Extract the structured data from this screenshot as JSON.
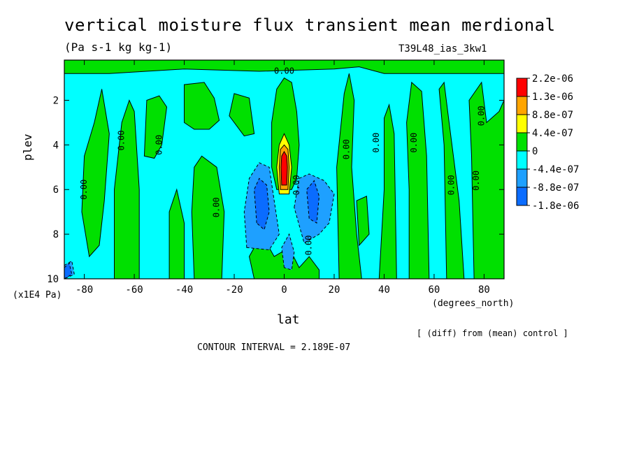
{
  "chart_data": {
    "type": "heatmap",
    "title": "vertical moisture flux transient mean merdional",
    "units": "(Pa s-1 kg kg-1)",
    "run_label": "T39L48_ias_3kw1",
    "xlabel": "lat",
    "x_unit": "(degrees_north)",
    "ylabel": "plev",
    "y_unit": "(x1E4 Pa)",
    "xlim": [
      -88,
      88
    ],
    "ylim": [
      10,
      0.2
    ],
    "x_ticks": [
      -80,
      -60,
      -40,
      -20,
      0,
      20,
      40,
      60,
      80
    ],
    "x_tick_labels": [
      "-80",
      "-60",
      "-40",
      "-20",
      "0",
      "20",
      "40",
      "60",
      "80"
    ],
    "y_ticks": [
      2,
      4,
      6,
      8,
      10
    ],
    "y_tick_labels": [
      "2",
      "4",
      "6",
      "8",
      "10"
    ],
    "legend": {
      "placement": "right",
      "levels": [
        "2.2e-06",
        "1.3e-06",
        "8.8e-07",
        "4.4e-07",
        "0",
        "-4.4e-07",
        "-8.8e-07",
        "-1.8e-06"
      ],
      "colors": [
        "#ff0000",
        "#ffa500",
        "#ffff00",
        "#00e000",
        "#00ffff",
        "#1ea0ff",
        "#0a6cff"
      ]
    },
    "contour_label": "0.00",
    "contour_label_positions": [
      [
        0,
        0.7
      ],
      [
        -80,
        6.0
      ],
      [
        -65,
        3.8
      ],
      [
        -50,
        4.0
      ],
      [
        -27,
        6.8
      ],
      [
        5,
        5.8
      ],
      [
        10,
        8.5
      ],
      [
        25,
        4.2
      ],
      [
        37,
        3.9
      ],
      [
        52,
        3.9
      ],
      [
        67,
        5.8
      ],
      [
        77,
        5.6
      ],
      [
        79,
        2.7
      ]
    ],
    "contour_interval_text": "CONTOUR INTERVAL = 2.189E-07",
    "footnote": "[ (diff) from (mean) control ]",
    "regions": [
      {
        "level": "green",
        "points": [
          [
            -88,
            0.2
          ],
          [
            88,
            0.2
          ],
          [
            88,
            0.8
          ],
          [
            40,
            0.8
          ],
          [
            30,
            0.5
          ],
          [
            20,
            0.6
          ],
          [
            -10,
            0.7
          ],
          [
            -40,
            0.6
          ],
          [
            -70,
            0.8
          ],
          [
            -88,
            0.8
          ]
        ]
      },
      {
        "level": "green",
        "points": [
          [
            -80,
            4.5
          ],
          [
            -76,
            3.0
          ],
          [
            -73,
            1.5
          ],
          [
            -70,
            3.5
          ],
          [
            -72,
            6.5
          ],
          [
            -74,
            8.5
          ],
          [
            -78,
            9.0
          ],
          [
            -81,
            7.0
          ]
        ]
      },
      {
        "level": "green",
        "points": [
          [
            -68,
            10
          ],
          [
            -68,
            6.0
          ],
          [
            -65,
            3.0
          ],
          [
            -62,
            2.0
          ],
          [
            -60,
            2.5
          ],
          [
            -58,
            6.0
          ],
          [
            -58,
            10
          ]
        ]
      },
      {
        "level": "green",
        "points": [
          [
            -56,
            4.5
          ],
          [
            -55,
            2.0
          ],
          [
            -50,
            1.8
          ],
          [
            -47,
            2.3
          ],
          [
            -49,
            4.0
          ],
          [
            -52,
            4.6
          ]
        ]
      },
      {
        "level": "green",
        "points": [
          [
            -46,
            10
          ],
          [
            -46,
            7.0
          ],
          [
            -43,
            6.0
          ],
          [
            -40,
            7.5
          ],
          [
            -40,
            10
          ]
        ]
      },
      {
        "level": "green",
        "points": [
          [
            -36,
            10
          ],
          [
            -37,
            7.0
          ],
          [
            -36,
            5.0
          ],
          [
            -33,
            4.5
          ],
          [
            -27,
            5.0
          ],
          [
            -24,
            7.0
          ],
          [
            -25,
            10
          ]
        ]
      },
      {
        "level": "green",
        "points": [
          [
            -40,
            3.0
          ],
          [
            -40,
            1.3
          ],
          [
            -32,
            1.2
          ],
          [
            -28,
            1.9
          ],
          [
            -26,
            2.9
          ],
          [
            -30,
            3.3
          ],
          [
            -36,
            3.3
          ]
        ]
      },
      {
        "level": "green",
        "points": [
          [
            -22,
            2.7
          ],
          [
            -20,
            1.7
          ],
          [
            -14,
            1.9
          ],
          [
            -12,
            3.5
          ],
          [
            -16,
            3.6
          ]
        ]
      },
      {
        "level": "green",
        "points": [
          [
            -12,
            10
          ],
          [
            -14,
            9.0
          ],
          [
            -9,
            8.0
          ],
          [
            -4,
            9.0
          ],
          [
            2,
            8.6
          ],
          [
            6,
            9.5
          ],
          [
            10,
            9.0
          ],
          [
            14,
            9.6
          ],
          [
            14,
            10
          ]
        ]
      },
      {
        "level": "green",
        "points": [
          [
            -3,
            1.5
          ],
          [
            0,
            1.0
          ],
          [
            3,
            1.2
          ],
          [
            5,
            2.5
          ],
          [
            6,
            4.0
          ],
          [
            5,
            5.5
          ],
          [
            3,
            6.0
          ],
          [
            -3,
            6.0
          ],
          [
            -5,
            5.0
          ],
          [
            -5,
            3.0
          ]
        ]
      },
      {
        "level": "green",
        "points": [
          [
            22,
            10
          ],
          [
            21,
            5.0
          ],
          [
            24,
            1.7
          ],
          [
            26,
            0.8
          ],
          [
            28,
            2.0
          ],
          [
            27,
            5.0
          ],
          [
            29,
            8.0
          ],
          [
            31,
            10
          ]
        ]
      },
      {
        "level": "green",
        "points": [
          [
            30,
            8.5
          ],
          [
            29,
            6.5
          ],
          [
            33,
            6.3
          ],
          [
            34,
            8.0
          ]
        ]
      },
      {
        "level": "green",
        "points": [
          [
            38,
            10
          ],
          [
            40,
            6.0
          ],
          [
            40,
            2.8
          ],
          [
            42,
            2.2
          ],
          [
            44,
            3.5
          ],
          [
            45,
            10
          ]
        ]
      },
      {
        "level": "green",
        "points": [
          [
            50,
            10
          ],
          [
            50,
            6.0
          ],
          [
            49,
            3.0
          ],
          [
            51,
            1.2
          ],
          [
            55,
            1.6
          ],
          [
            57,
            4.5
          ],
          [
            58,
            10
          ]
        ]
      },
      {
        "level": "green",
        "points": [
          [
            65,
            10
          ],
          [
            64,
            4.0
          ],
          [
            62,
            1.5
          ],
          [
            64,
            1.2
          ],
          [
            66,
            3.0
          ],
          [
            70,
            6.5
          ],
          [
            72,
            10
          ]
        ]
      },
      {
        "level": "green",
        "points": [
          [
            76,
            10
          ],
          [
            75,
            4.5
          ],
          [
            74,
            2.0
          ],
          [
            79,
            1.2
          ],
          [
            81,
            3.0
          ],
          [
            86,
            2.5
          ],
          [
            88,
            2.0
          ],
          [
            88,
            10
          ]
        ]
      },
      {
        "level": "lightblue",
        "points": [
          [
            -15,
            8.6
          ],
          [
            -16,
            7.0
          ],
          [
            -14,
            5.5
          ],
          [
            -10,
            4.8
          ],
          [
            -6,
            5.0
          ],
          [
            -4,
            6.5
          ],
          [
            -2,
            8.0
          ],
          [
            -6,
            8.7
          ]
        ]
      },
      {
        "level": "lightblue",
        "points": [
          [
            4,
            6.8
          ],
          [
            6,
            5.5
          ],
          [
            10,
            5.3
          ],
          [
            16,
            5.6
          ],
          [
            20,
            6.2
          ],
          [
            18,
            7.5
          ],
          [
            14,
            8.0
          ],
          [
            8,
            8.4
          ]
        ]
      },
      {
        "level": "lightblue",
        "points": [
          [
            -88,
            9.4
          ],
          [
            -85,
            9.2
          ],
          [
            -84,
            9.8
          ],
          [
            -88,
            10
          ]
        ]
      },
      {
        "level": "lightblue",
        "points": [
          [
            0,
            9.5
          ],
          [
            -1,
            8.6
          ],
          [
            2,
            8.0
          ],
          [
            4,
            8.8
          ],
          [
            3,
            9.6
          ]
        ]
      },
      {
        "level": "darkblue",
        "points": [
          [
            -11,
            7.5
          ],
          [
            -12,
            6.0
          ],
          [
            -10,
            5.5
          ],
          [
            -7,
            5.8
          ],
          [
            -6,
            7.0
          ],
          [
            -8,
            7.8
          ]
        ]
      },
      {
        "level": "darkblue",
        "points": [
          [
            10,
            7.3
          ],
          [
            9,
            6.0
          ],
          [
            12,
            5.6
          ],
          [
            14,
            6.3
          ],
          [
            13,
            7.5
          ]
        ]
      },
      {
        "level": "darkblue",
        "points": [
          [
            -88,
            9.5
          ],
          [
            -86,
            9.3
          ],
          [
            -85,
            9.8
          ],
          [
            -88,
            10
          ]
        ]
      },
      {
        "level": "yellow",
        "points": [
          [
            -2,
            6.2
          ],
          [
            -3,
            5.0
          ],
          [
            -2,
            4.0
          ],
          [
            0,
            3.5
          ],
          [
            2,
            4.0
          ],
          [
            3,
            5.0
          ],
          [
            2,
            6.2
          ]
        ]
      },
      {
        "level": "orange",
        "points": [
          [
            -1.5,
            6.0
          ],
          [
            -2,
            5.0
          ],
          [
            -1.5,
            4.2
          ],
          [
            0,
            4.0
          ],
          [
            1.5,
            4.2
          ],
          [
            2,
            5.0
          ],
          [
            1.5,
            6.0
          ]
        ]
      },
      {
        "level": "red",
        "points": [
          [
            -1,
            5.8
          ],
          [
            -1.3,
            5.0
          ],
          [
            -1,
            4.5
          ],
          [
            0,
            4.3
          ],
          [
            1,
            4.5
          ],
          [
            1.3,
            5.0
          ],
          [
            1,
            5.8
          ]
        ]
      }
    ]
  }
}
